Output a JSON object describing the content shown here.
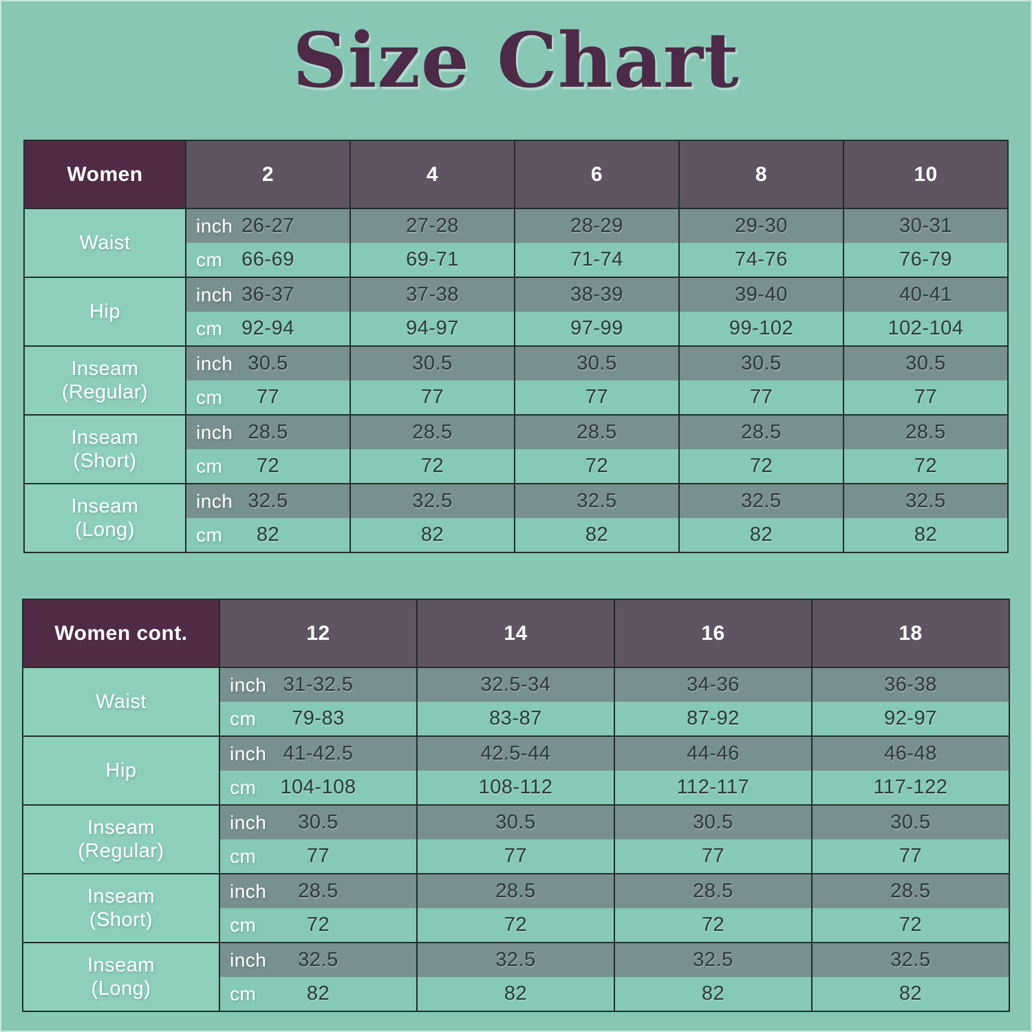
{
  "title": "Size Chart",
  "colors": {
    "background": "#87c7b4",
    "title_text": "#4c2a48",
    "header_label_bg": "#4f2b45",
    "header_size_bg": "#5e5462",
    "row_inch_bg": "#78908f",
    "row_cm_bg": "#85c9b6",
    "label_cell_bg": "#8dcfbb",
    "value_text": "#2e3a3b",
    "border": "#232d2b",
    "white_text": "#ffffff"
  },
  "chart_data": [
    {
      "type": "table",
      "title": "Women",
      "columns": [
        "Women",
        "2",
        "4",
        "6",
        "8",
        "10"
      ],
      "rows": [
        {
          "label": "Waist",
          "unit_rows": [
            {
              "unit": "inch",
              "values": [
                "26-27",
                "27-28",
                "28-29",
                "29-30",
                "30-31"
              ]
            },
            {
              "unit": "cm",
              "values": [
                "66-69",
                "69-71",
                "71-74",
                "74-76",
                "76-79"
              ]
            }
          ]
        },
        {
          "label": "Hip",
          "unit_rows": [
            {
              "unit": "inch",
              "values": [
                "36-37",
                "37-38",
                "38-39",
                "39-40",
                "40-41"
              ]
            },
            {
              "unit": "cm",
              "values": [
                "92-94",
                "94-97",
                "97-99",
                "99-102",
                "102-104"
              ]
            }
          ]
        },
        {
          "label": "Inseam\n(Regular)",
          "unit_rows": [
            {
              "unit": "inch",
              "values": [
                "30.5",
                "30.5",
                "30.5",
                "30.5",
                "30.5"
              ]
            },
            {
              "unit": "cm",
              "values": [
                "77",
                "77",
                "77",
                "77",
                "77"
              ]
            }
          ]
        },
        {
          "label": "Inseam\n(Short)",
          "unit_rows": [
            {
              "unit": "inch",
              "values": [
                "28.5",
                "28.5",
                "28.5",
                "28.5",
                "28.5"
              ]
            },
            {
              "unit": "cm",
              "values": [
                "72",
                "72",
                "72",
                "72",
                "72"
              ]
            }
          ]
        },
        {
          "label": "Inseam\n(Long)",
          "unit_rows": [
            {
              "unit": "inch",
              "values": [
                "32.5",
                "32.5",
                "32.5",
                "32.5",
                "32.5"
              ]
            },
            {
              "unit": "cm",
              "values": [
                "82",
                "82",
                "82",
                "82",
                "82"
              ]
            }
          ]
        }
      ]
    },
    {
      "type": "table",
      "title": "Women cont.",
      "columns": [
        "Women cont.",
        "12",
        "14",
        "16",
        "18"
      ],
      "rows": [
        {
          "label": "Waist",
          "unit_rows": [
            {
              "unit": "inch",
              "values": [
                "31-32.5",
                "32.5-34",
                "34-36",
                "36-38"
              ]
            },
            {
              "unit": "cm",
              "values": [
                "79-83",
                "83-87",
                "87-92",
                "92-97"
              ]
            }
          ]
        },
        {
          "label": "Hip",
          "unit_rows": [
            {
              "unit": "inch",
              "values": [
                "41-42.5",
                "42.5-44",
                "44-46",
                "46-48"
              ]
            },
            {
              "unit": "cm",
              "values": [
                "104-108",
                "108-112",
                "112-117",
                "117-122"
              ]
            }
          ]
        },
        {
          "label": "Inseam\n(Regular)",
          "unit_rows": [
            {
              "unit": "inch",
              "values": [
                "30.5",
                "30.5",
                "30.5",
                "30.5"
              ]
            },
            {
              "unit": "cm",
              "values": [
                "77",
                "77",
                "77",
                "77"
              ]
            }
          ]
        },
        {
          "label": "Inseam\n(Short)",
          "unit_rows": [
            {
              "unit": "inch",
              "values": [
                "28.5",
                "28.5",
                "28.5",
                "28.5"
              ]
            },
            {
              "unit": "cm",
              "values": [
                "72",
                "72",
                "72",
                "72"
              ]
            }
          ]
        },
        {
          "label": "Inseam\n(Long)",
          "unit_rows": [
            {
              "unit": "inch",
              "values": [
                "32.5",
                "32.5",
                "32.5",
                "32.5"
              ]
            },
            {
              "unit": "cm",
              "values": [
                "82",
                "82",
                "82",
                "82"
              ]
            }
          ]
        }
      ]
    }
  ]
}
